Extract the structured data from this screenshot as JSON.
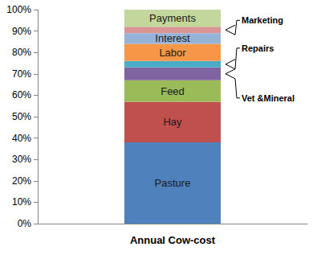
{
  "chart_data": {
    "type": "bar",
    "stacked": true,
    "grid": false,
    "categories": [
      "Annual Cow-cost"
    ],
    "series": [
      {
        "name": "Pasture",
        "color": "#4F81BD",
        "values": [
          38
        ]
      },
      {
        "name": "Hay",
        "color": "#C0504D",
        "values": [
          19
        ]
      },
      {
        "name": "Feed",
        "color": "#9BBB59",
        "values": [
          10
        ]
      },
      {
        "name": "Vet &Mineral",
        "color": "#8064A2",
        "values": [
          6
        ]
      },
      {
        "name": "Repairs",
        "color": "#4BACC6",
        "values": [
          3
        ]
      },
      {
        "name": "Labor",
        "color": "#F79646",
        "values": [
          8
        ]
      },
      {
        "name": "Interest",
        "color": "#95B3D7",
        "values": [
          5
        ]
      },
      {
        "name": "Marketing",
        "color": "#D99694",
        "values": [
          3
        ]
      },
      {
        "name": "Payments",
        "color": "#C3D69B",
        "values": [
          8
        ]
      }
    ],
    "annotations": [
      "Marketing",
      "Repairs",
      "Vet &Mineral"
    ],
    "ylim": [
      0,
      100
    ],
    "yticks": [
      {
        "value": 0,
        "label": "0%"
      },
      {
        "value": 10,
        "label": "10%"
      },
      {
        "value": 20,
        "label": "20%"
      },
      {
        "value": 30,
        "label": "30%"
      },
      {
        "value": 40,
        "label": "40%"
      },
      {
        "value": 50,
        "label": "50%"
      },
      {
        "value": 60,
        "label": "60%"
      },
      {
        "value": 70,
        "label": "70%"
      },
      {
        "value": 80,
        "label": "80%"
      },
      {
        "value": 90,
        "label": "90%"
      },
      {
        "value": 100,
        "label": "100%"
      }
    ]
  }
}
